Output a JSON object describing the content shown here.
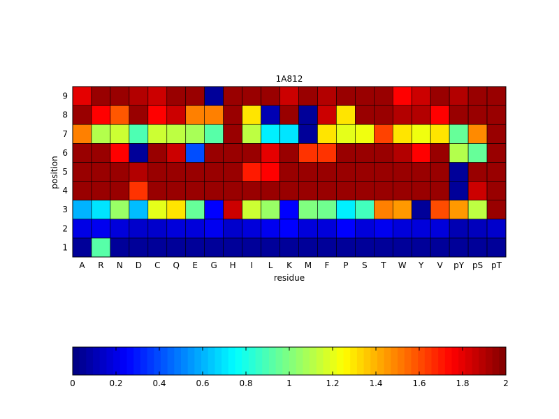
{
  "chart_data": {
    "type": "heatmap",
    "title": "1A812",
    "xlabel": "residue",
    "ylabel": "position",
    "x_categories": [
      "A",
      "R",
      "N",
      "D",
      "C",
      "Q",
      "E",
      "G",
      "H",
      "I",
      "L",
      "K",
      "M",
      "F",
      "P",
      "S",
      "T",
      "W",
      "Y",
      "V",
      "pY",
      "pS",
      "pT"
    ],
    "y_categories": [
      "1",
      "2",
      "3",
      "4",
      "5",
      "6",
      "7",
      "8",
      "9"
    ],
    "values": [
      [
        0.05,
        0.92,
        0.05,
        0.05,
        0.05,
        0.05,
        0.05,
        0.05,
        0.05,
        0.05,
        0.05,
        0.05,
        0.05,
        0.05,
        0.05,
        0.05,
        0.05,
        0.05,
        0.05,
        0.05,
        0.05,
        0.05,
        0.05
      ],
      [
        0.2,
        0.22,
        0.18,
        0.15,
        0.15,
        0.18,
        0.18,
        0.22,
        0.15,
        0.18,
        0.22,
        0.25,
        0.18,
        0.18,
        0.25,
        0.18,
        0.22,
        0.18,
        0.18,
        0.18,
        0.1,
        0.12,
        0.15
      ],
      [
        0.6,
        0.7,
        1.05,
        0.62,
        1.2,
        1.3,
        0.95,
        0.25,
        1.85,
        1.15,
        1.05,
        0.25,
        1.0,
        0.97,
        0.72,
        0.88,
        1.5,
        1.45,
        0.05,
        1.6,
        1.45,
        1.12,
        1.95
      ],
      [
        1.95,
        1.95,
        1.95,
        1.65,
        1.95,
        1.95,
        1.95,
        1.95,
        1.95,
        1.95,
        1.95,
        1.95,
        1.95,
        1.95,
        1.95,
        1.95,
        1.95,
        1.95,
        1.95,
        1.95,
        0.05,
        1.85,
        1.95
      ],
      [
        1.95,
        1.95,
        1.95,
        1.9,
        1.95,
        1.95,
        1.95,
        1.95,
        1.95,
        1.7,
        1.75,
        1.95,
        1.95,
        1.95,
        1.95,
        1.95,
        1.95,
        1.95,
        1.95,
        1.95,
        0.05,
        1.95,
        1.95
      ],
      [
        1.95,
        1.95,
        1.75,
        0.05,
        1.95,
        1.85,
        0.4,
        1.95,
        1.95,
        1.95,
        1.8,
        1.95,
        1.65,
        1.65,
        1.95,
        1.95,
        1.95,
        1.9,
        1.75,
        1.95,
        1.1,
        0.95,
        1.95
      ],
      [
        1.5,
        1.1,
        1.15,
        0.9,
        1.15,
        1.12,
        1.08,
        0.92,
        1.95,
        1.12,
        0.72,
        0.7,
        0.05,
        1.3,
        1.2,
        1.22,
        1.62,
        1.3,
        1.22,
        1.3,
        0.95,
        1.48,
        1.95
      ],
      [
        1.95,
        1.75,
        1.58,
        1.95,
        1.75,
        1.85,
        1.5,
        1.5,
        1.95,
        1.3,
        0.1,
        1.95,
        0.05,
        1.85,
        1.3,
        1.95,
        1.95,
        1.9,
        1.9,
        1.75,
        1.95,
        1.95,
        1.95
      ],
      [
        1.8,
        1.95,
        1.95,
        1.9,
        1.85,
        1.95,
        1.95,
        0.05,
        1.95,
        1.95,
        1.95,
        1.85,
        1.95,
        1.9,
        1.95,
        1.95,
        1.95,
        1.75,
        1.85,
        1.95,
        1.9,
        1.95,
        1.95
      ]
    ],
    "y_order": "1 at bottom, 9 at top",
    "colormap": "jet",
    "clim": [
      0,
      2
    ],
    "colorbar": {
      "placement": "bottom",
      "ticks": [
        "0",
        "0.2",
        "0.4",
        "0.6",
        "0.8",
        "1",
        "1.2",
        "1.4",
        "1.6",
        "1.8",
        "2"
      ]
    }
  }
}
